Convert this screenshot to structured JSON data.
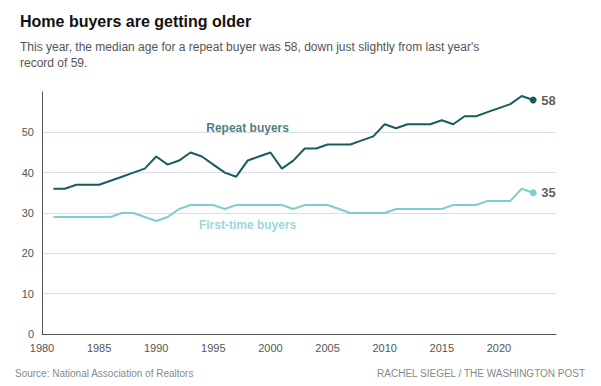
{
  "chart_data": {
    "type": "line",
    "title": "Home buyers are getting older",
    "subtitle": "This year, the median age for a repeat buyer was 58, down just slightly from last year's\nrecord of 59.",
    "source": "Source: National Association of Realtors",
    "credit": "RACHEL SIEGEL / THE WASHINGTON POST",
    "x": [
      1981,
      1982,
      1983,
      1984,
      1985,
      1986,
      1987,
      1988,
      1989,
      1990,
      1991,
      1992,
      1993,
      1994,
      1995,
      1996,
      1997,
      1998,
      1999,
      2000,
      2001,
      2002,
      2003,
      2004,
      2005,
      2006,
      2007,
      2008,
      2009,
      2010,
      2011,
      2012,
      2013,
      2014,
      2015,
      2016,
      2017,
      2018,
      2019,
      2020,
      2021,
      2022,
      2023
    ],
    "series": [
      {
        "name": "Repeat buyers",
        "color": "#1a5c5c",
        "values": [
          36,
          36,
          37,
          37,
          37,
          38,
          39,
          40,
          41,
          44,
          42,
          43,
          45,
          44,
          42,
          40,
          39,
          43,
          44,
          45,
          41,
          43,
          46,
          46,
          47,
          47,
          47,
          48,
          49,
          52,
          51,
          52,
          52,
          52,
          53,
          52,
          54,
          54,
          55,
          56,
          57,
          59,
          58
        ]
      },
      {
        "name": "First-time buyers",
        "color": "#7ecece",
        "values": [
          29,
          29,
          29,
          29,
          29,
          29,
          30,
          30,
          29,
          28,
          29,
          31,
          32,
          32,
          32,
          31,
          32,
          32,
          32,
          32,
          32,
          31,
          32,
          32,
          32,
          31,
          30,
          30,
          30,
          30,
          31,
          31,
          31,
          31,
          31,
          32,
          32,
          32,
          33,
          33,
          33,
          36,
          35
        ]
      }
    ],
    "annotations": [
      {
        "text": "Repeat buyers",
        "x": 1998,
        "y": 49,
        "color": "#1a5c5c"
      },
      {
        "text": "First-time buyers",
        "x": 1998,
        "y": 25,
        "color": "#7ecece"
      },
      {
        "text": "58",
        "x": 2023,
        "y": 58
      },
      {
        "text": "35",
        "x": 2023,
        "y": 35
      }
    ],
    "xlim": [
      1980,
      2025
    ],
    "xticks": [
      1980,
      1985,
      1990,
      1995,
      2000,
      2005,
      2010,
      2015,
      2020
    ],
    "ylim": [
      0,
      60
    ],
    "yticks": [
      0,
      10,
      20,
      30,
      40,
      50
    ],
    "grid": true
  }
}
